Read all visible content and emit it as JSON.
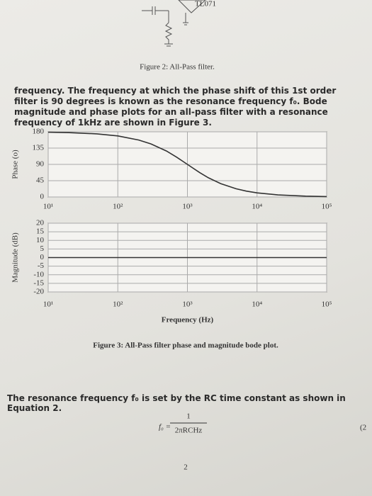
{
  "figure2_caption": "Figure 2: All-Pass filter.",
  "paragraph": "frequency. The frequency at which the phase shift of this 1st order filter is 90 degrees is known as the resonance frequency f₀. Bode magnitude and phase plots for an all-pass filter with a resonance frequency of 1kHz are shown in Figure 3.",
  "chart_data": [
    {
      "type": "line",
      "ylabel": "Phase (o)",
      "log_x": true,
      "grid": true,
      "color": "#333333",
      "xlim": [
        10,
        100000
      ],
      "xticks": [
        {
          "value": 10,
          "label": "10¹"
        },
        {
          "value": 100,
          "label": "10²"
        },
        {
          "value": 1000,
          "label": "10³"
        },
        {
          "value": 10000,
          "label": "10⁴"
        },
        {
          "value": 100000,
          "label": "10⁵"
        }
      ],
      "ylim": [
        0,
        180
      ],
      "yticks": [
        0,
        45,
        90,
        135,
        180
      ],
      "x": [
        10,
        20,
        50,
        100,
        200,
        300,
        500,
        700,
        1000,
        1500,
        2000,
        3000,
        5000,
        7000,
        10000,
        20000,
        50000,
        100000
      ],
      "values": [
        178.9,
        177.7,
        174.3,
        168.6,
        157.4,
        146.6,
        126.9,
        110.0,
        90,
        67.4,
        53.1,
        36.9,
        22.6,
        16.3,
        11.4,
        5.7,
        2.3,
        1.1
      ]
    },
    {
      "type": "line",
      "ylabel": "Magnitude (dB)",
      "xlabel": "Frequency (Hz)",
      "log_x": true,
      "grid": true,
      "color": "#333333",
      "xlim": [
        10,
        100000
      ],
      "xticks": [
        {
          "value": 10,
          "label": "10¹"
        },
        {
          "value": 100,
          "label": "10²"
        },
        {
          "value": 1000,
          "label": "10³"
        },
        {
          "value": 10000,
          "label": "10⁴"
        },
        {
          "value": 100000,
          "label": "10⁵"
        }
      ],
      "ylim": [
        -20,
        20
      ],
      "yticks": [
        -20,
        -15,
        -10,
        -5,
        0,
        5,
        10,
        15,
        20
      ],
      "x": [
        10,
        100000
      ],
      "values": [
        0,
        0
      ]
    }
  ],
  "figure3_caption": "Figure 3: All-Pass filter phase and magnitude bode plot.",
  "equation_intro": "The resonance frequency f₀ is set by the RC time constant as shown in Equation 2.",
  "equation": {
    "lhs": "f₀ =",
    "numerator": "1",
    "denominator": "2πRCHz"
  },
  "equation_number": "(2",
  "page_number": "2"
}
